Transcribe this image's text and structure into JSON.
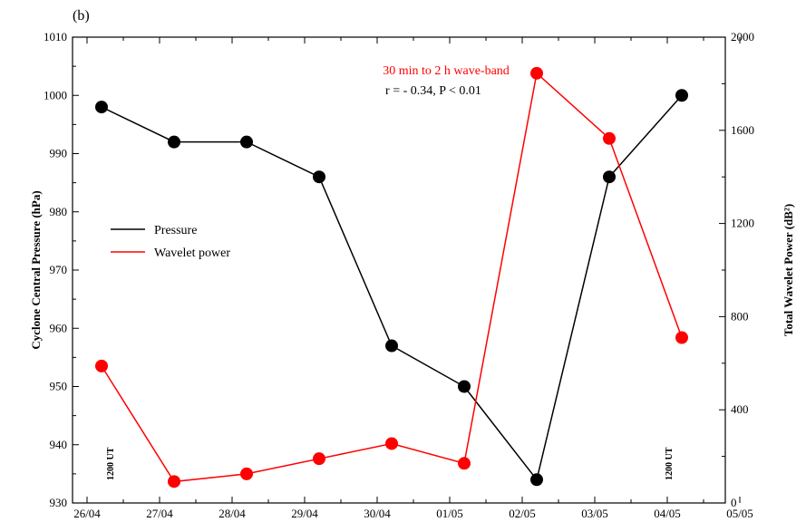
{
  "chart_data": {
    "type": "line",
    "panel_label": "(b)",
    "x_labels": [
      "26/04",
      "27/04",
      "28/04",
      "29/04",
      "30/04",
      "01/05",
      "02/05",
      "03/05",
      "04/05",
      "05/05"
    ],
    "x_range": [
      25.8,
      34.8
    ],
    "ylabel_left": "Cyclone Central Pressure (hPa)",
    "ylabel_right": "Total Wavelet Power (dB²)",
    "ylim_left": [
      930,
      1010
    ],
    "ylim_right": [
      0,
      2000
    ],
    "yticks_left": [
      930,
      940,
      950,
      960,
      970,
      980,
      990,
      1000,
      1010
    ],
    "yticks_right": [
      0,
      400,
      800,
      1200,
      1600,
      2000
    ],
    "series": [
      {
        "name": "Pressure",
        "axis": "left",
        "color": "#000000",
        "x": [
          26.2,
          27.2,
          28.2,
          29.2,
          30.2,
          31.2,
          32.2,
          33.2,
          34.2
        ],
        "values": [
          998,
          992,
          992,
          986,
          957,
          950,
          934,
          986,
          1000
        ]
      },
      {
        "name": "Wavelet power",
        "axis": "right",
        "color": "#ff0000",
        "x": [
          26.2,
          27.2,
          28.2,
          29.2,
          30.2,
          31.2,
          32.2,
          33.2,
          34.2
        ],
        "values": [
          588,
          92,
          125,
          190,
          255,
          170,
          1845,
          1565,
          710
        ]
      }
    ],
    "annotations": {
      "band_title": "30 min to 2 h wave-band",
      "stats": "r = - 0.34, P < 0.01",
      "marker_left": "1200 UT",
      "marker_right": "1200 UT"
    },
    "legend_position": "middle-left",
    "grid": false
  }
}
